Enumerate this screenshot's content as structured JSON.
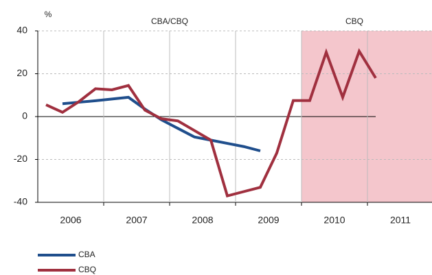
{
  "chart_data": {
    "type": "line",
    "y_label": "%",
    "xlim": [
      2006,
      2012
    ],
    "ylim": [
      -40,
      40
    ],
    "yticks": [
      -40,
      -20,
      0,
      20,
      40
    ],
    "xticks": [
      {
        "value": 2006.5,
        "label": "2006"
      },
      {
        "value": 2007.5,
        "label": "2007"
      },
      {
        "value": 2008.5,
        "label": "2008"
      },
      {
        "value": 2009.5,
        "label": "2009"
      },
      {
        "value": 2010.5,
        "label": "2010"
      },
      {
        "value": 2011.5,
        "label": "2011"
      }
    ],
    "xgrid": [
      2007,
      2008,
      2009,
      2010,
      2011
    ],
    "grid": true,
    "regions": [
      {
        "label": "CBA/CBQ",
        "x": [
          2006,
          2010
        ]
      },
      {
        "label": "CBQ",
        "x": [
          2010,
          2012
        ],
        "color": "#f4c6cc"
      }
    ],
    "legend": "bottom-left",
    "series": [
      {
        "name": "CBA",
        "color": "#1f4e8c",
        "x": [
          2006.375,
          2006.625,
          2006.875,
          2007.125,
          2007.375,
          2007.625,
          2007.875,
          2008.125,
          2008.375,
          2008.625,
          2008.875,
          2009.125,
          2009.375
        ],
        "values": [
          6,
          6.7,
          7.4,
          8.2,
          9,
          3.5,
          -1.5,
          -5.5,
          -9.5,
          -11,
          -12.5,
          -14,
          -16
        ]
      },
      {
        "name": "CBQ",
        "color": "#a0303f",
        "x": [
          2006.125,
          2006.375,
          2006.625,
          2006.875,
          2007.125,
          2007.375,
          2007.625,
          2007.875,
          2008.125,
          2008.375,
          2008.625,
          2008.875,
          2009.125,
          2009.375,
          2009.625,
          2009.875,
          2010.125,
          2010.375,
          2010.625,
          2010.875,
          2011.125
        ],
        "values": [
          5.5,
          2,
          7,
          13,
          12.5,
          14.5,
          3,
          -1,
          -2,
          -6.5,
          -11,
          -37,
          -35,
          -33,
          -17,
          7.5,
          7.5,
          30,
          9,
          30.5,
          18
        ]
      }
    ]
  }
}
